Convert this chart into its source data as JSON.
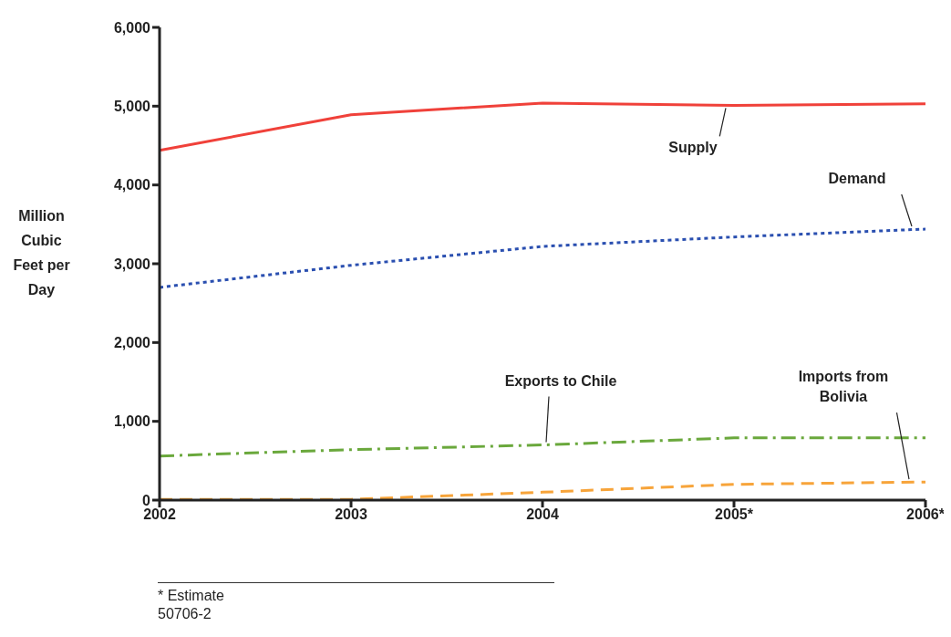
{
  "chart_data": {
    "type": "line",
    "ylabel": "Million Cubic Feet per Day",
    "categories": [
      "2002",
      "2003",
      "2004",
      "2005*",
      "2006*"
    ],
    "series": [
      {
        "name": "Supply",
        "color": "#f0413a",
        "line_style": "solid",
        "values": [
          4440,
          4890,
          5040,
          5010,
          5030
        ]
      },
      {
        "name": "Demand",
        "color": "#2a4fb0",
        "line_style": "dotted",
        "values": [
          2700,
          2980,
          3220,
          3340,
          3440
        ]
      },
      {
        "name": "Exports to Chile",
        "color": "#6aa83c",
        "line_style": "dashdot",
        "values": [
          560,
          640,
          700,
          790,
          790
        ]
      },
      {
        "name": "Imports from Bolivia",
        "color": "#f7a43a",
        "line_style": "dashed",
        "values": [
          10,
          10,
          100,
          200,
          230
        ]
      }
    ],
    "ylim": [
      0,
      6000
    ],
    "yticks": [
      {
        "value": 0,
        "label": "0"
      },
      {
        "value": 1000,
        "label": "1,000"
      },
      {
        "value": 2000,
        "label": "2,000"
      },
      {
        "value": 3000,
        "label": "3,000"
      },
      {
        "value": 4000,
        "label": "4,000"
      },
      {
        "value": 5000,
        "label": "5,000"
      },
      {
        "value": 6000,
        "label": "6,000"
      }
    ],
    "grid": false,
    "legend": false,
    "marker": "none",
    "annotations": [
      "* Estimate",
      "50706-2"
    ]
  }
}
